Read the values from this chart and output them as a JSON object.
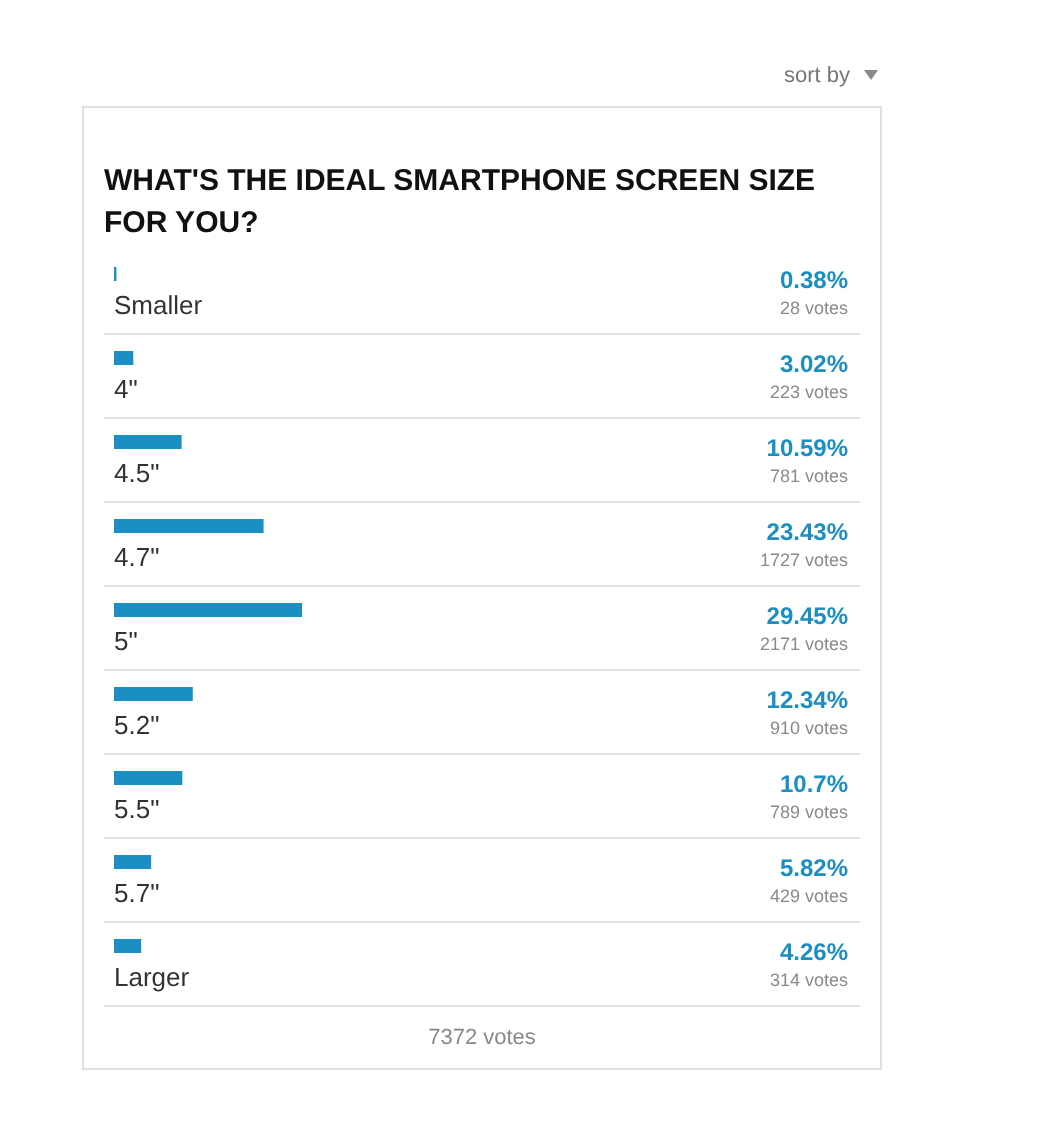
{
  "chart_data": {
    "type": "bar",
    "orientation": "horizontal",
    "title": "WHAT'S THE IDEAL SMARTPHONE SCREEN SIZE FOR YOU?",
    "categories": [
      "Smaller",
      "4\"",
      "4.5\"",
      "4.7\"",
      "5\"",
      "5.2\"",
      "5.5\"",
      "5.7\"",
      "Larger"
    ],
    "values": [
      0.38,
      3.02,
      10.59,
      23.43,
      29.45,
      12.34,
      10.7,
      5.82,
      4.26
    ],
    "value_labels": [
      "0.38%",
      "3.02%",
      "10.59%",
      "23.43%",
      "29.45%",
      "12.34%",
      "10.7%",
      "5.82%",
      "4.26%"
    ],
    "color": "#1b8ec4",
    "grid": "y",
    "tick_labels": "y",
    "annotations": [
      "sort by",
      "28 votes",
      "223 votes",
      "781 votes",
      "1727 votes",
      "2171 votes",
      "910 votes",
      "789 votes",
      "429 votes",
      "314 votes",
      "7372 votes"
    ]
  }
}
